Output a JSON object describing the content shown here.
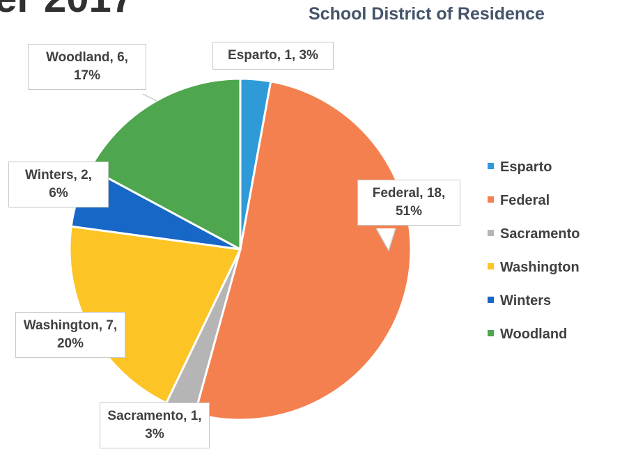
{
  "chart_data": {
    "type": "pie",
    "title": "er 2017",
    "subtitle": "School District of Residence",
    "categories": [
      "Esparto",
      "Federal",
      "Sacramento",
      "Washington",
      "Winters",
      "Woodland"
    ],
    "values": [
      1,
      18,
      1,
      7,
      2,
      6
    ],
    "value_labels": [
      "Esparto, 1, 3%",
      "Federal, 18, 51%",
      "Sacramento, 1, 3%",
      "Washington, 7, 20%",
      "Winters, 2, 6%",
      "Woodland, 6, 17%"
    ],
    "colors": [
      "#2e9bd8",
      "#f4804f",
      "#b5b5b5",
      "#fdc425",
      "#1767c6",
      "#4ea64e"
    ],
    "legend": "right"
  }
}
